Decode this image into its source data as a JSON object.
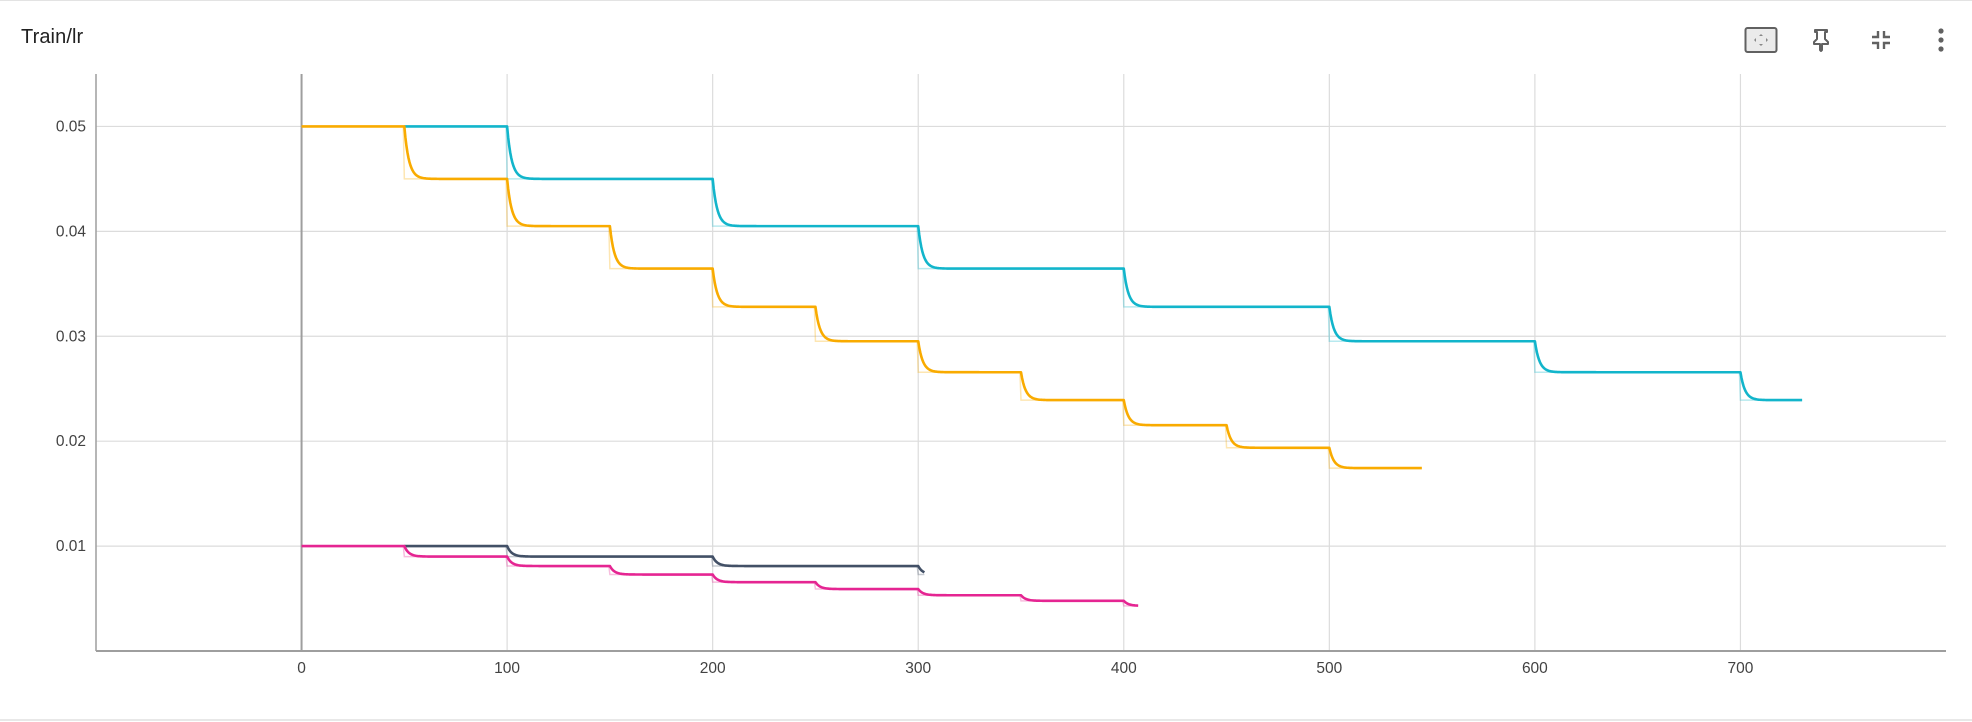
{
  "header": {
    "title": "Train/lr"
  },
  "toolbar": {
    "buttons": [
      {
        "name": "fit-domain-button",
        "icon": "fit-to-data-icon"
      },
      {
        "name": "pin-button",
        "icon": "pin-icon"
      },
      {
        "name": "collapse-button",
        "icon": "fullscreen-exit-icon"
      },
      {
        "name": "more-options-button",
        "icon": "more-vert-icon"
      }
    ]
  },
  "chart_data": {
    "type": "line",
    "title": "Train/lr",
    "xlabel": "",
    "ylabel": "",
    "xlim": [
      -100,
      800
    ],
    "ylim": [
      0,
      0.055
    ],
    "grid": true,
    "xticks": [
      0,
      100,
      200,
      300,
      400,
      500,
      600,
      700
    ],
    "yticks": [
      0.01,
      0.02,
      0.03,
      0.04,
      0.05
    ],
    "ytick_labels": [
      "0.01",
      "0.02",
      "0.03",
      "0.04",
      "0.05"
    ],
    "xtick_labels": [
      "0",
      "100",
      "200",
      "300",
      "400",
      "500",
      "600",
      "700"
    ],
    "series": [
      {
        "color": "#12b5cb",
        "start_value": 0.05,
        "step_factor": 0.9,
        "step_every": 100,
        "start_x": 50,
        "end_x": 730
      },
      {
        "color": "#f9ab00",
        "start_value": 0.05,
        "step_factor": 0.9,
        "step_every": 50,
        "start_x": 0,
        "end_x": 545
      },
      {
        "color": "#425066",
        "start_value": 0.01,
        "step_factor": 0.9,
        "step_every": 100,
        "start_x": 50,
        "end_x": 303
      },
      {
        "color": "#e52592",
        "start_value": 0.01,
        "step_factor": 0.9,
        "step_every": 50,
        "start_x": 0,
        "end_x": 407
      }
    ]
  }
}
